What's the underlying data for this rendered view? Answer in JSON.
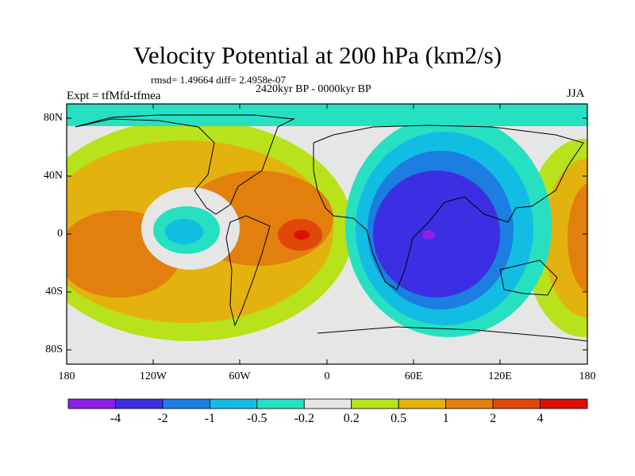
{
  "title": "Velocity Potential at 200 hPa (km2/s)",
  "stats": "rmsd= 1.49664 diff= 2.4958e-07",
  "period": "2420kyr BP - 0000kyr BP",
  "experiment": "Expt = tfMfd-tfmea",
  "season": "JJA",
  "latitude_labels": [
    "80N",
    "40N",
    "0",
    "40S",
    "80S"
  ],
  "longitude_labels": [
    "180",
    "120W",
    "60W",
    "0",
    "60E",
    "120E",
    "180"
  ],
  "colorbar": {
    "labels": [
      "-4",
      "-2",
      "-1",
      "-0.5",
      "-0.2",
      "0.2",
      "0.5",
      "1",
      "2",
      "4"
    ],
    "colors": [
      "#8c1fe6",
      "#3c2fe3",
      "#1b7ee0",
      "#12bde3",
      "#26e0c2",
      "#e6e6e6",
      "#b8e21a",
      "#e3b20f",
      "#e37f0c",
      "#e2470a",
      "#dc1106"
    ]
  }
}
